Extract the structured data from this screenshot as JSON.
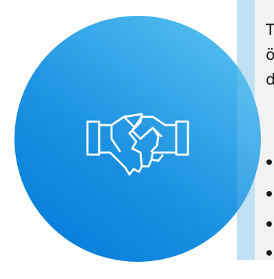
{
  "side_panel": {
    "text_lines": [
      "T",
      "ö",
      "d"
    ],
    "bullets": [
      "",
      "",
      "",
      ""
    ]
  },
  "icon": {
    "name": "handshake-icon",
    "stroke_color": "#ffffff"
  },
  "colors": {
    "circle_gradient_start": "#0078d7",
    "circle_gradient_end": "#5cc6f2",
    "panel_background": "#f2f2f2",
    "panel_accent_strip": "#bfe1f3"
  }
}
